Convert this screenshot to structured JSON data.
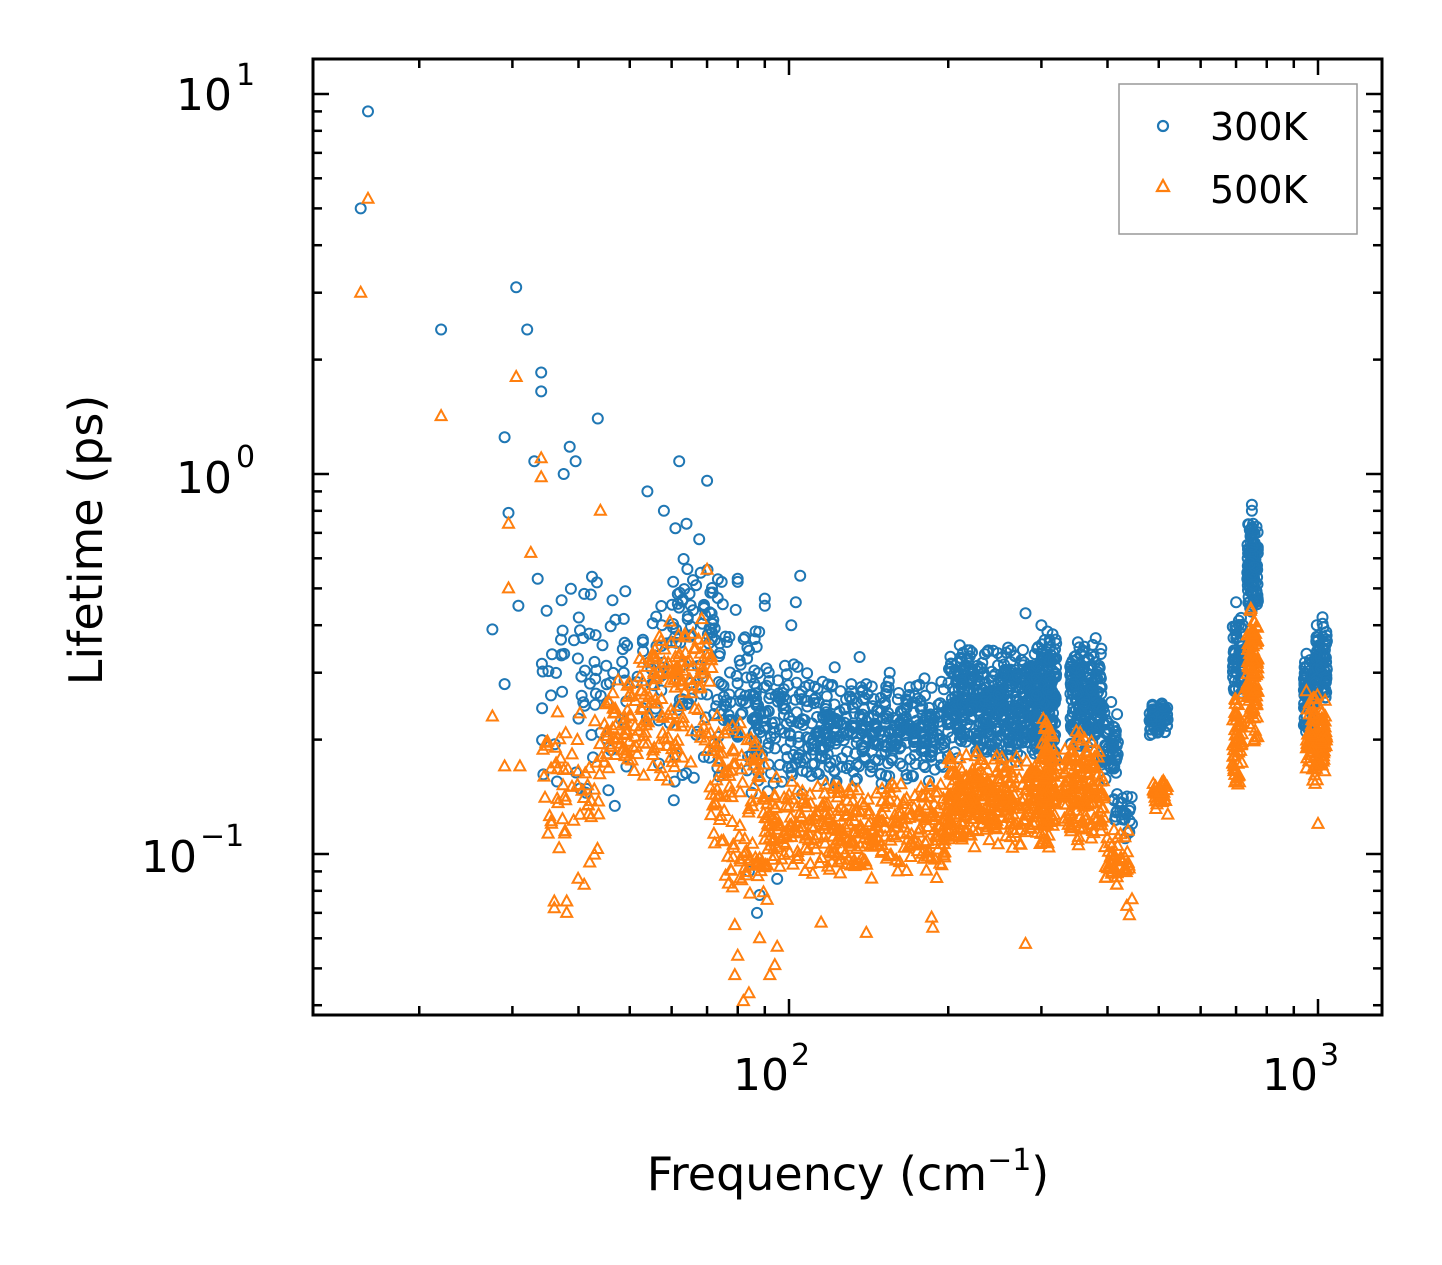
{
  "chart_data": {
    "type": "scatter",
    "xscale": "log",
    "yscale": "log",
    "xlim": [
      12,
      1300
    ],
    "ylim": [
      0.04,
      12
    ],
    "xlabel": "Frequency (cm",
    "xlabel_sup": "−1",
    "xlabel_end": ")",
    "ylabel": "Lifetime (ps)",
    "x_ticks": [
      {
        "base": "10",
        "exp": "2",
        "value": 100
      },
      {
        "base": "10",
        "exp": "3",
        "value": 1000
      }
    ],
    "y_ticks": [
      {
        "base": "10",
        "exp": "−1",
        "value": 0.1
      },
      {
        "base": "10",
        "exp": "0",
        "value": 1
      },
      {
        "base": "10",
        "exp": "1",
        "value": 10
      }
    ],
    "legend": {
      "location": "top-right"
    },
    "series": [
      {
        "name": "300K",
        "color": "#1f77b4",
        "marker": "circle",
        "points": [
          [
            16.0,
            9.0
          ],
          [
            15.5,
            5.0
          ],
          [
            22,
            2.4
          ],
          [
            30.5,
            3.1
          ],
          [
            32,
            2.4
          ],
          [
            34,
            1.85
          ],
          [
            34,
            1.65
          ],
          [
            29,
            1.25
          ],
          [
            33,
            1.08
          ],
          [
            38.5,
            1.18
          ],
          [
            39.5,
            1.08
          ],
          [
            37.5,
            1.0
          ],
          [
            43.5,
            1.4
          ],
          [
            29.5,
            0.79
          ],
          [
            30.8,
            0.45
          ],
          [
            33.5,
            0.53
          ],
          [
            27.5,
            0.39
          ],
          [
            29,
            0.28
          ],
          [
            62,
            1.08
          ],
          [
            70,
            0.96
          ],
          [
            54,
            0.9
          ],
          [
            58,
            0.8
          ],
          [
            61,
            0.72
          ],
          [
            64,
            0.74
          ],
          [
            80,
            0.53
          ],
          [
            80,
            0.52
          ],
          [
            90,
            0.47
          ],
          [
            90,
            0.45
          ],
          [
            105,
            0.54
          ],
          [
            101,
            0.4
          ],
          [
            103,
            0.46
          ],
          [
            84,
            0.09
          ],
          [
            87,
            0.07
          ],
          [
            95,
            0.086
          ],
          [
            88,
            0.078
          ],
          [
            136,
            0.33
          ],
          [
            122,
            0.31
          ],
          [
            155,
            0.3
          ],
          [
            140,
            0.28
          ],
          [
            280,
            0.43
          ],
          [
            300,
            0.4
          ],
          [
            380,
            0.37
          ],
          [
            440,
            0.13
          ],
          [
            445,
            0.12
          ],
          [
            432,
            0.11
          ],
          [
            750,
            0.83
          ],
          [
            750,
            0.8
          ],
          [
            700,
            0.46
          ],
          [
            1020,
            0.42
          ],
          [
            995,
            0.4
          ]
        ],
        "clusters": [
          {
            "x": [
              34,
              72
            ],
            "y": [
              0.12,
              0.72
            ],
            "n": 150
          },
          {
            "x": [
              60,
              75
            ],
            "y": [
              0.32,
              0.62
            ],
            "n": 40
          },
          {
            "x": [
              72,
              88
            ],
            "y": [
              0.15,
              0.45
            ],
            "n": 70
          },
          {
            "x": [
              85,
              110
            ],
            "y": [
              0.14,
              0.34
            ],
            "n": 120
          },
          {
            "x": [
              110,
              200
            ],
            "y": [
              0.15,
              0.3
            ],
            "n": 350
          },
          {
            "x": [
              200,
              290
            ],
            "y": [
              0.17,
              0.36
            ],
            "n": 450
          },
          {
            "x": [
              290,
              320
            ],
            "y": [
              0.17,
              0.4
            ],
            "n": 220
          },
          {
            "x": [
              340,
              390
            ],
            "y": [
              0.18,
              0.38
            ],
            "n": 200
          },
          {
            "x": [
              390,
              420
            ],
            "y": [
              0.14,
              0.26
            ],
            "n": 60
          },
          {
            "x": [
              410,
              445
            ],
            "y": [
              0.11,
              0.15
            ],
            "n": 25
          },
          {
            "x": [
              480,
              520
            ],
            "y": [
              0.2,
              0.26
            ],
            "n": 60
          },
          {
            "x": [
              690,
              720
            ],
            "y": [
              0.24,
              0.45
            ],
            "n": 60
          },
          {
            "x": [
              735,
              770
            ],
            "y": [
              0.42,
              0.76
            ],
            "n": 130
          },
          {
            "x": [
              940,
              980
            ],
            "y": [
              0.2,
              0.34
            ],
            "n": 70
          },
          {
            "x": [
              985,
              1040
            ],
            "y": [
              0.25,
              0.41
            ],
            "n": 90
          }
        ]
      },
      {
        "name": "500K",
        "color": "#ff7f0e",
        "marker": "triangle",
        "points": [
          [
            16.0,
            5.3
          ],
          [
            15.5,
            3.0
          ],
          [
            22,
            1.42
          ],
          [
            30.5,
            1.8
          ],
          [
            34,
            1.1
          ],
          [
            34,
            0.98
          ],
          [
            29.5,
            0.74
          ],
          [
            32.5,
            0.62
          ],
          [
            29.5,
            0.5
          ],
          [
            27.5,
            0.23
          ],
          [
            29,
            0.17
          ],
          [
            31,
            0.17
          ],
          [
            44,
            0.8
          ],
          [
            70,
            0.56
          ],
          [
            36,
            0.075
          ],
          [
            36,
            0.072
          ],
          [
            38,
            0.075
          ],
          [
            38,
            0.07
          ],
          [
            42,
            0.095
          ],
          [
            41,
            0.083
          ],
          [
            79,
            0.065
          ],
          [
            79,
            0.048
          ],
          [
            80,
            0.054
          ],
          [
            82,
            0.041
          ],
          [
            84,
            0.043
          ],
          [
            88,
            0.06
          ],
          [
            92,
            0.048
          ],
          [
            94,
            0.051
          ],
          [
            95,
            0.057
          ],
          [
            115,
            0.066
          ],
          [
            140,
            0.062
          ],
          [
            187,
            0.064
          ],
          [
            186,
            0.068
          ],
          [
            280,
            0.058
          ],
          [
            440,
            0.069
          ],
          [
            435,
            0.073
          ],
          [
            445,
            0.076
          ],
          [
            520,
            0.127
          ],
          [
            1000,
            0.12
          ]
        ],
        "clusters": [
          {
            "x": [
              34,
              45
            ],
            "y": [
              0.085,
              0.26
            ],
            "n": 60
          },
          {
            "x": [
              45,
              70
            ],
            "y": [
              0.15,
              0.35
            ],
            "n": 140
          },
          {
            "x": [
              55,
              72
            ],
            "y": [
              0.25,
              0.42
            ],
            "n": 60
          },
          {
            "x": [
              70,
              90
            ],
            "y": [
              0.1,
              0.25
            ],
            "n": 80
          },
          {
            "x": [
              74,
              95
            ],
            "y": [
              0.07,
              0.12
            ],
            "n": 40
          },
          {
            "x": [
              90,
              200
            ],
            "y": [
              0.085,
              0.16
            ],
            "n": 380
          },
          {
            "x": [
              200,
              320
            ],
            "y": [
              0.1,
              0.19
            ],
            "n": 380
          },
          {
            "x": [
              300,
              320
            ],
            "y": [
              0.11,
              0.24
            ],
            "n": 60
          },
          {
            "x": [
              330,
              395
            ],
            "y": [
              0.1,
              0.22
            ],
            "n": 160
          },
          {
            "x": [
              395,
              440
            ],
            "y": [
              0.075,
              0.12
            ],
            "n": 45
          },
          {
            "x": [
              485,
              520
            ],
            "y": [
              0.13,
              0.16
            ],
            "n": 40
          },
          {
            "x": [
              690,
              720
            ],
            "y": [
              0.14,
              0.28
            ],
            "n": 55
          },
          {
            "x": [
              735,
              770
            ],
            "y": [
              0.18,
              0.48
            ],
            "n": 110
          },
          {
            "x": [
              950,
              1040
            ],
            "y": [
              0.15,
              0.28
            ],
            "n": 110
          }
        ]
      }
    ]
  }
}
